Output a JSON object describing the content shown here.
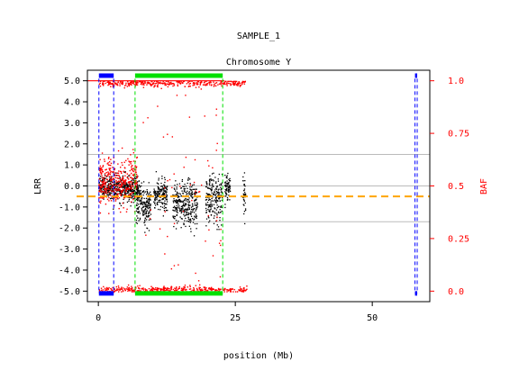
{
  "chart_data": {
    "type": "scatter",
    "title": "SAMPLE_1",
    "subtitle": "Chromosome Y",
    "xlabel": "position (Mb)",
    "ylabel_left": "LRR",
    "ylabel_right": "BAF",
    "xlim": [
      -2,
      60.5
    ],
    "xticks": [
      0,
      25,
      50
    ],
    "ylim_left": [
      -5.5,
      5.5
    ],
    "yticks_left": [
      5.0,
      4.0,
      3.0,
      2.0,
      1.0,
      0.0,
      -1.0,
      -2.0,
      -3.0,
      -4.0,
      -5.0
    ],
    "yticks_left_labels": [
      "5.0",
      "4.0",
      "3.0",
      "2.0",
      "1.0",
      "0.0",
      "-1.0",
      "-2.0",
      "-3.0",
      "-4.0",
      "-5.0"
    ],
    "ylim_right": [
      -0.05,
      1.05
    ],
    "yticks_right": [
      1.0,
      0.75,
      0.5,
      0.25,
      0.0
    ],
    "yticks_right_labels": [
      "1.0",
      "0.75",
      "0.5",
      "0.25",
      "0.0"
    ],
    "gridlines_left": [
      1.5,
      0.0,
      -1.7
    ],
    "series": [
      {
        "kind": "LRR",
        "color": "#000000",
        "segments": [
          {
            "start": 0.0,
            "end": 2.5,
            "mean": 0.0,
            "sd": 0.25
          },
          {
            "start": 2.6,
            "end": 5.0,
            "mean": -0.1,
            "sd": 0.28
          },
          {
            "start": 5.0,
            "end": 7.5,
            "mean": -0.2,
            "sd": 0.3
          },
          {
            "start": 6.8,
            "end": 9.5,
            "mean": -0.9,
            "sd": 0.45
          },
          {
            "start": 10.0,
            "end": 12.5,
            "mean": -0.4,
            "sd": 0.35
          },
          {
            "start": 13.5,
            "end": 18.0,
            "mean": -0.9,
            "sd": 0.55
          },
          {
            "start": 19.5,
            "end": 22.5,
            "mean": -0.6,
            "sd": 0.55
          },
          {
            "start": 23.0,
            "end": 24.0,
            "mean": 0.0,
            "sd": 0.3
          },
          {
            "start": 26.3,
            "end": 26.8,
            "mean": -0.3,
            "sd": 0.5
          }
        ]
      },
      {
        "kind": "BAF",
        "color": "#ff0000",
        "clusters": [
          {
            "start": 0.0,
            "end": 7.0,
            "baf_mean": 0.52,
            "baf_sd": 0.06
          },
          {
            "start": 0.0,
            "end": 27.0,
            "baf_mean": 0.99,
            "baf_sd": 0.008
          },
          {
            "start": 0.0,
            "end": 27.0,
            "baf_mean": 0.01,
            "baf_sd": 0.008
          }
        ]
      }
    ],
    "reference_line": {
      "value_baf": 0.45,
      "color": "#ffa500",
      "style": "dashed"
    },
    "baf_threshold_line": {
      "value_baf": 1.0,
      "color": "#ff0000"
    },
    "regions": [
      {
        "label": "blue",
        "color": "#0000ff",
        "start": 0.1,
        "end": 2.8
      },
      {
        "label": "green",
        "color": "#00e000",
        "start": 6.7,
        "end": 22.7
      },
      {
        "label": "blue",
        "color": "#0000ff",
        "start": 57.8,
        "end": 58.2
      }
    ],
    "grid": false,
    "legend": "none"
  }
}
